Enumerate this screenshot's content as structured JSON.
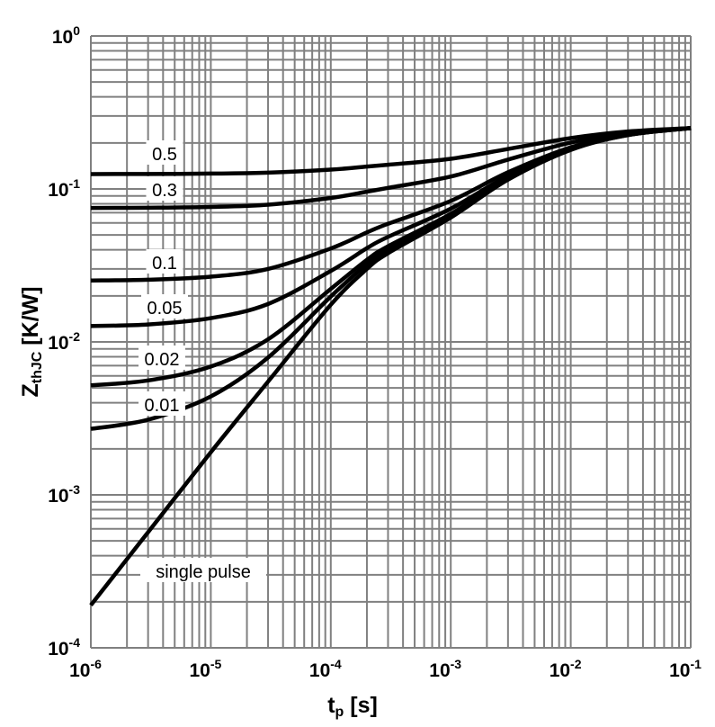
{
  "chart_data": {
    "type": "line",
    "title": "",
    "xlabel": {
      "main": "t",
      "sub": "p",
      "unit": " [s]"
    },
    "ylabel": {
      "main": "Z",
      "sub": "thJC",
      "unit": " [K/W]"
    },
    "xscale": "log",
    "yscale": "log",
    "xlim": [
      1e-06,
      0.1
    ],
    "ylim": [
      0.0001,
      1
    ],
    "grid": true,
    "xticks": [
      {
        "base": "10",
        "exp": "-6"
      },
      {
        "base": "10",
        "exp": "-5"
      },
      {
        "base": "10",
        "exp": "-4"
      },
      {
        "base": "10",
        "exp": "-3"
      },
      {
        "base": "10",
        "exp": "-2"
      },
      {
        "base": "10",
        "exp": "-1"
      }
    ],
    "yticks": [
      {
        "base": "10",
        "exp": "0"
      },
      {
        "base": "10",
        "exp": "-1"
      },
      {
        "base": "10",
        "exp": "-2"
      },
      {
        "base": "10",
        "exp": "-3"
      },
      {
        "base": "10",
        "exp": "-4"
      }
    ],
    "x": [
      1e-06,
      3e-06,
      1e-05,
      3e-05,
      0.0001,
      0.0002,
      0.0003,
      0.001,
      0.003,
      0.01,
      0.03,
      0.1
    ],
    "series": [
      {
        "name": "0.5",
        "values": [
          0.1251,
          0.1253,
          0.126,
          0.1278,
          0.1338,
          0.14,
          0.144,
          0.1575,
          0.1825,
          0.215,
          0.2375,
          0.25
        ]
      },
      {
        "name": "0.3",
        "values": [
          0.0751,
          0.0754,
          0.0763,
          0.0789,
          0.0873,
          0.096,
          0.1016,
          0.1205,
          0.1555,
          0.201,
          0.2325,
          0.25
        ]
      },
      {
        "name": "0.1",
        "values": [
          0.0252,
          0.0255,
          0.0267,
          0.03,
          0.0408,
          0.052,
          0.0592,
          0.0835,
          0.1285,
          0.187,
          0.2275,
          0.25
        ]
      },
      {
        "name": "0.05",
        "values": [
          0.0127,
          0.013,
          0.0143,
          0.0177,
          0.0291,
          0.041,
          0.0486,
          0.0743,
          0.1218,
          0.1835,
          0.2263,
          0.25
        ]
      },
      {
        "name": "0.02",
        "values": [
          0.0052,
          0.0056,
          0.0069,
          0.0104,
          0.0222,
          0.0344,
          0.0422,
          0.0687,
          0.1177,
          0.1814,
          0.2255,
          0.25
        ]
      },
      {
        "name": "0.01",
        "values": [
          0.0027,
          0.0031,
          0.0044,
          0.0079,
          0.0198,
          0.0322,
          0.0401,
          0.0669,
          0.1164,
          0.1807,
          0.2253,
          0.25
        ]
      },
      {
        "name": "single pulse",
        "values": [
          0.00019,
          0.00057,
          0.0019,
          0.0055,
          0.0175,
          0.03,
          0.038,
          0.065,
          0.115,
          0.18,
          0.225,
          0.25
        ]
      }
    ]
  }
}
